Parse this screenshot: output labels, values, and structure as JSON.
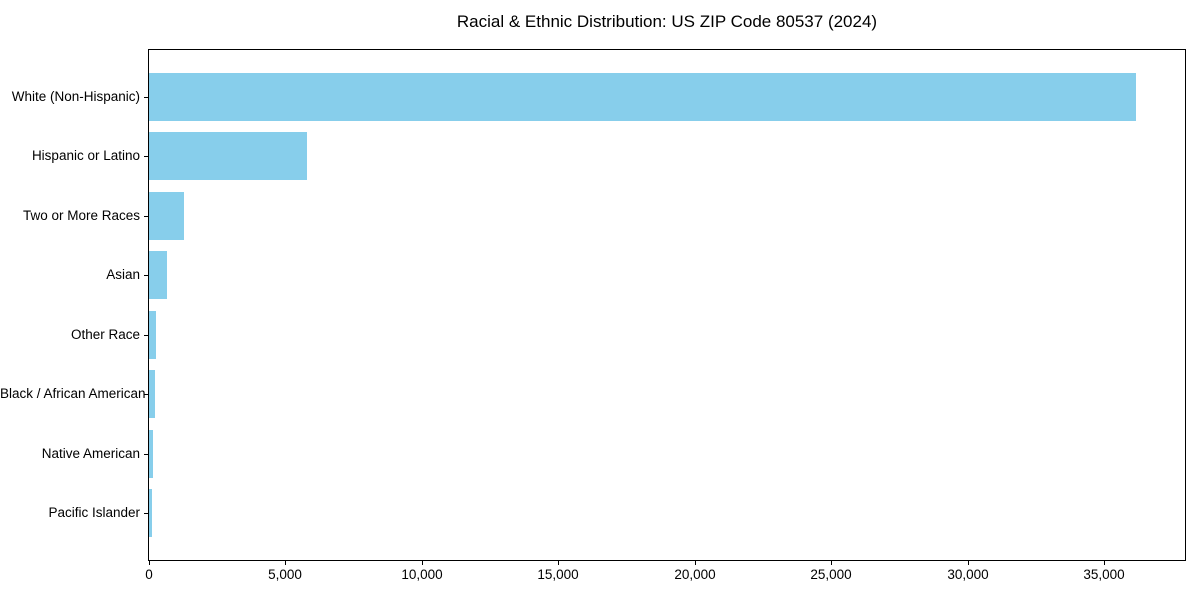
{
  "chart_data": {
    "type": "bar",
    "orientation": "horizontal",
    "title": "Racial & Ethnic Distribution: US ZIP Code 80537 (2024)",
    "categories": [
      "White (Non-Hispanic)",
      "Hispanic or Latino",
      "Two or More Races",
      "Asian",
      "Other Race",
      "Black / African American",
      "Native American",
      "Pacific Islander"
    ],
    "values": [
      36140,
      5800,
      1295,
      650,
      255,
      220,
      160,
      110
    ],
    "bar_color": "#87CEEB",
    "axis_color": "#000000",
    "background_color": "#ffffff",
    "xlim": [
      0,
      37950
    ],
    "x_ticks": [
      {
        "value": 0,
        "label": "0"
      },
      {
        "value": 5000,
        "label": "5,000"
      },
      {
        "value": 10000,
        "label": "10,000"
      },
      {
        "value": 15000,
        "label": "15,000"
      },
      {
        "value": 20000,
        "label": "20,000"
      },
      {
        "value": 25000,
        "label": "25,000"
      },
      {
        "value": 30000,
        "label": "30,000"
      },
      {
        "value": 35000,
        "label": "35,000"
      }
    ],
    "xlabel": "",
    "ylabel": "",
    "grid": false,
    "legend": false
  }
}
